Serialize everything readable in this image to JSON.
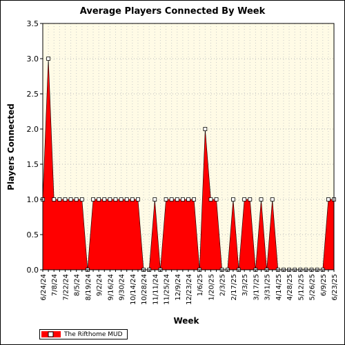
{
  "chart_data": {
    "type": "area",
    "title": "Average Players Connected By Week",
    "xlabel": "Week",
    "ylabel": "Players Connected",
    "ylim": [
      0,
      3.5
    ],
    "yticks": [
      "0.0",
      "0.5",
      "1.0",
      "1.5",
      "2.0",
      "2.5",
      "3.0",
      "3.5"
    ],
    "x_tick_labels": [
      "6/24/24",
      "7/8/24",
      "7/22/24",
      "8/5/24",
      "8/19/24",
      "9/2/24",
      "9/16/24",
      "9/30/24",
      "10/14/24",
      "10/28/24",
      "11/11/24",
      "11/25/24",
      "12/9/24",
      "12/23/24",
      "1/6/25",
      "1/20/25",
      "2/3/25",
      "2/17/25",
      "3/3/25",
      "3/17/25",
      "3/31/25",
      "4/14/25",
      "4/28/25",
      "5/12/25",
      "5/26/25",
      "6/9/25",
      "6/23/25"
    ],
    "grid": true,
    "legend_position": "bottom-left",
    "series": [
      {
        "name": "The Rifthome MUD",
        "color": "#ff0000",
        "x": [
          "6/24/24",
          "7/1/24",
          "7/8/24",
          "7/15/24",
          "7/22/24",
          "7/29/24",
          "8/5/24",
          "8/12/24",
          "8/19/24",
          "8/26/24",
          "9/2/24",
          "9/9/24",
          "9/16/24",
          "9/23/24",
          "9/30/24",
          "10/7/24",
          "10/14/24",
          "10/21/24",
          "10/28/24",
          "11/4/24",
          "11/11/24",
          "11/18/24",
          "11/25/24",
          "12/2/24",
          "12/9/24",
          "12/16/24",
          "12/23/24",
          "12/30/24",
          "1/6/25",
          "1/13/25",
          "1/20/25",
          "1/27/25",
          "2/3/25",
          "2/10/25",
          "2/17/25",
          "2/24/25",
          "3/3/25",
          "3/10/25",
          "3/17/25",
          "3/24/25",
          "3/31/25",
          "4/7/25",
          "4/14/25",
          "4/21/25",
          "4/28/25",
          "5/5/25",
          "5/12/25",
          "5/19/25",
          "5/26/25",
          "6/2/25",
          "6/9/25",
          "6/16/25",
          "6/23/25"
        ],
        "values": [
          1,
          3,
          1,
          1,
          1,
          1,
          1,
          1,
          0,
          1,
          1,
          1,
          1,
          1,
          1,
          1,
          1,
          1,
          0,
          0,
          1,
          0,
          1,
          1,
          1,
          1,
          1,
          1,
          0,
          2,
          1,
          1,
          0,
          0,
          1,
          0,
          1,
          1,
          0,
          1,
          0,
          1,
          0,
          0,
          0,
          0,
          0,
          0,
          0,
          0,
          0,
          1,
          1
        ]
      }
    ]
  }
}
